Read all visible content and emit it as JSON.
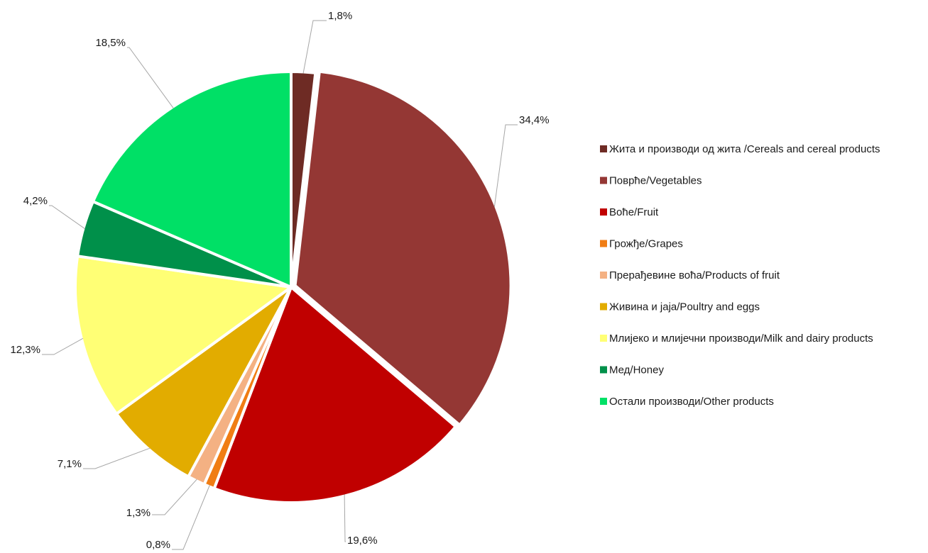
{
  "chart_data": {
    "type": "pie",
    "legend_position": "right",
    "slices": [
      {
        "label": "Жита и производи од жита /Cereals and cereal products",
        "value": 1.8,
        "value_label": "1,8%",
        "color": "#6e2b24"
      },
      {
        "label": "Поврће/Vegetables",
        "value": 34.4,
        "value_label": "34,4%",
        "color": "#943734"
      },
      {
        "label": "Воће/Fruit",
        "value": 19.6,
        "value_label": "19,6%",
        "color": "#c00000"
      },
      {
        "label": "Грожђе/Grapes",
        "value": 0.8,
        "value_label": "0,8%",
        "color": "#f07d14"
      },
      {
        "label": "Прерађевине воћа/Products of fruit",
        "value": 1.3,
        "value_label": "1,3%",
        "color": "#f4b183"
      },
      {
        "label": "Живина и jaja/Poultry and eggs",
        "value": 7.1,
        "value_label": "7,1%",
        "color": "#e2ac00"
      },
      {
        "label": "Млијеко и млијечни производи/Milk and dairy products",
        "value": 12.3,
        "value_label": "12,3%",
        "color": "#ffff75"
      },
      {
        "label": "Мед/Honey",
        "value": 4.2,
        "value_label": "4,2%",
        "color": "#00904a"
      },
      {
        "label": "Остали производи/Other products",
        "value": 18.5,
        "value_label": "18,5%",
        "color": "#00e066"
      }
    ]
  }
}
